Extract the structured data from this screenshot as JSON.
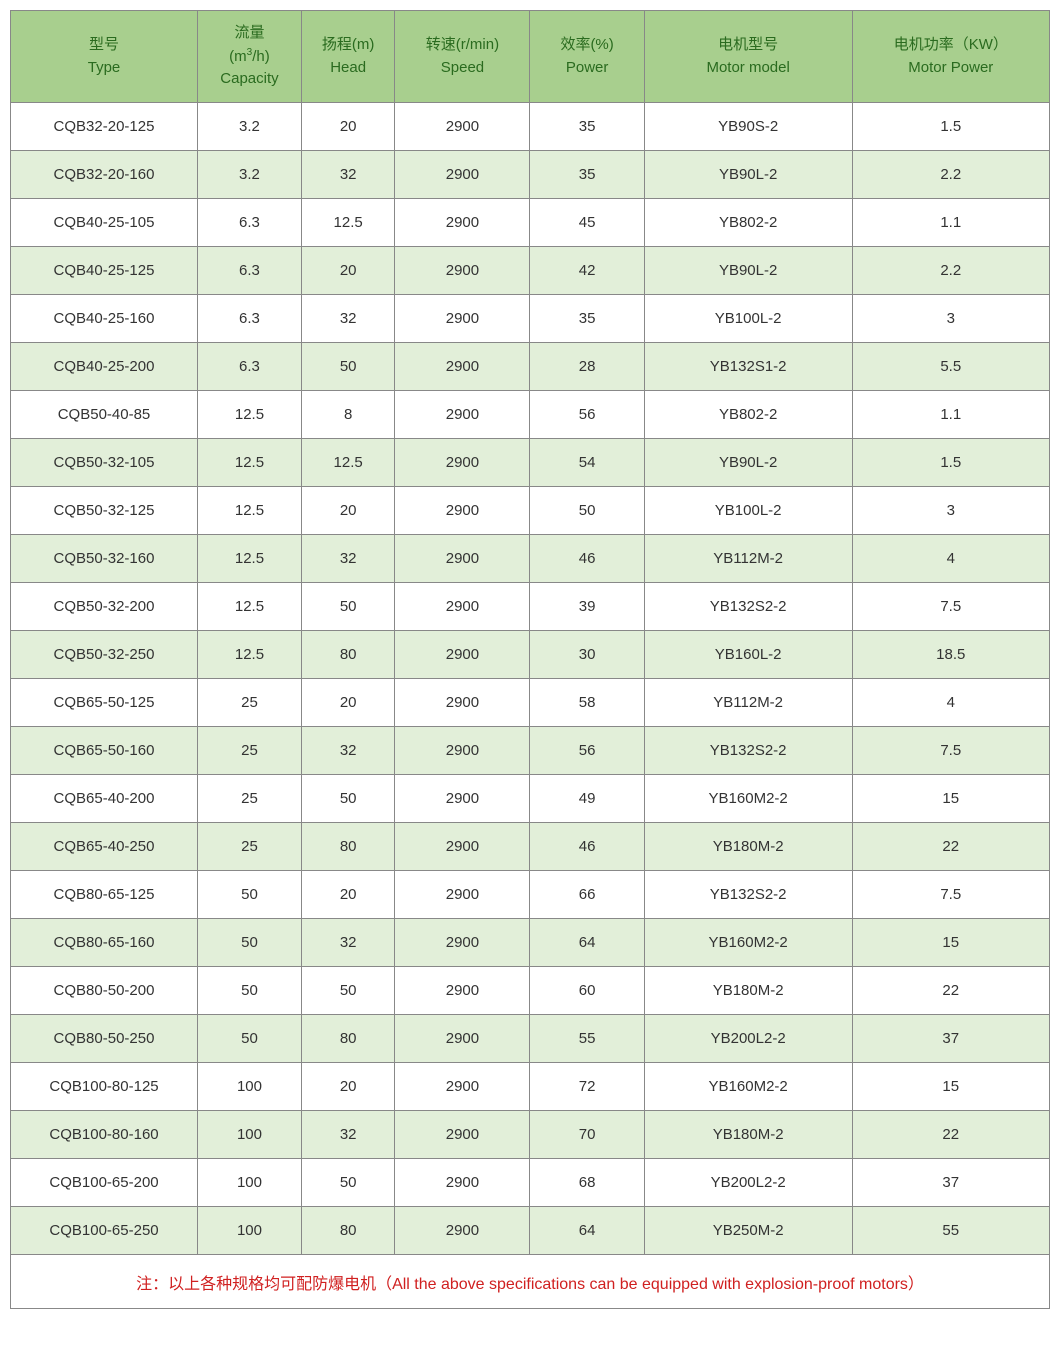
{
  "table": {
    "header_bg": "#a8cf8e",
    "header_text_color": "#2a6b1f",
    "row_even_bg": "#e2efd9",
    "row_odd_bg": "#ffffff",
    "border_color": "#888888",
    "cell_text_color": "#333333",
    "footnote_color": "#d02020",
    "columns": [
      {
        "key": "type",
        "cn": "型号",
        "en": "Type",
        "unit": "",
        "width": "18%"
      },
      {
        "key": "capacity",
        "cn": "流量",
        "en": "Capacity",
        "unit": "(m³/h)",
        "width": "10%"
      },
      {
        "key": "head",
        "cn": "扬程",
        "en": "Head",
        "unit": "(m)",
        "width": "9%"
      },
      {
        "key": "speed",
        "cn": "转速",
        "en": "Speed",
        "unit": "(r/min)",
        "width": "13%"
      },
      {
        "key": "power",
        "cn": "效率",
        "en": "Power",
        "unit": "(%)",
        "width": "11%"
      },
      {
        "key": "motor",
        "cn": "电机型号",
        "en": "Motor model",
        "unit": "",
        "width": "20%"
      },
      {
        "key": "mpower",
        "cn": "电机功率",
        "en": "Motor Power",
        "unit": "（KW）",
        "width": "19%"
      }
    ],
    "rows": [
      [
        "CQB32-20-125",
        "3.2",
        "20",
        "2900",
        "35",
        "YB90S-2",
        "1.5"
      ],
      [
        "CQB32-20-160",
        "3.2",
        "32",
        "2900",
        "35",
        "YB90L-2",
        "2.2"
      ],
      [
        "CQB40-25-105",
        "6.3",
        "12.5",
        "2900",
        "45",
        "YB802-2",
        "1.1"
      ],
      [
        "CQB40-25-125",
        "6.3",
        "20",
        "2900",
        "42",
        "YB90L-2",
        "2.2"
      ],
      [
        "CQB40-25-160",
        "6.3",
        "32",
        "2900",
        "35",
        "YB100L-2",
        "3"
      ],
      [
        "CQB40-25-200",
        "6.3",
        "50",
        "2900",
        "28",
        "YB132S1-2",
        "5.5"
      ],
      [
        "CQB50-40-85",
        "12.5",
        "8",
        "2900",
        "56",
        "YB802-2",
        "1.1"
      ],
      [
        "CQB50-32-105",
        "12.5",
        "12.5",
        "2900",
        "54",
        "YB90L-2",
        "1.5"
      ],
      [
        "CQB50-32-125",
        "12.5",
        "20",
        "2900",
        "50",
        "YB100L-2",
        "3"
      ],
      [
        "CQB50-32-160",
        "12.5",
        "32",
        "2900",
        "46",
        "YB112M-2",
        "4"
      ],
      [
        "CQB50-32-200",
        "12.5",
        "50",
        "2900",
        "39",
        "YB132S2-2",
        "7.5"
      ],
      [
        "CQB50-32-250",
        "12.5",
        "80",
        "2900",
        "30",
        "YB160L-2",
        "18.5"
      ],
      [
        "CQB65-50-125",
        "25",
        "20",
        "2900",
        "58",
        "YB112M-2",
        "4"
      ],
      [
        "CQB65-50-160",
        "25",
        "32",
        "2900",
        "56",
        "YB132S2-2",
        "7.5"
      ],
      [
        "CQB65-40-200",
        "25",
        "50",
        "2900",
        "49",
        "YB160M2-2",
        "15"
      ],
      [
        "CQB65-40-250",
        "25",
        "80",
        "2900",
        "46",
        "YB180M-2",
        "22"
      ],
      [
        "CQB80-65-125",
        "50",
        "20",
        "2900",
        "66",
        "YB132S2-2",
        "7.5"
      ],
      [
        "CQB80-65-160",
        "50",
        "32",
        "2900",
        "64",
        "YB160M2-2",
        "15"
      ],
      [
        "CQB80-50-200",
        "50",
        "50",
        "2900",
        "60",
        "YB180M-2",
        "22"
      ],
      [
        "CQB80-50-250",
        "50",
        "80",
        "2900",
        "55",
        "YB200L2-2",
        "37"
      ],
      [
        "CQB100-80-125",
        "100",
        "20",
        "2900",
        "72",
        "YB160M2-2",
        "15"
      ],
      [
        "CQB100-80-160",
        "100",
        "32",
        "2900",
        "70",
        "YB180M-2",
        "22"
      ],
      [
        "CQB100-65-200",
        "100",
        "50",
        "2900",
        "68",
        "YB200L2-2",
        "37"
      ],
      [
        "CQB100-65-250",
        "100",
        "80",
        "2900",
        "64",
        "YB250M-2",
        "55"
      ]
    ],
    "footnote": "注：以上各种规格均可配防爆电机（All the above specifications can be equipped with explosion-proof motors）"
  }
}
